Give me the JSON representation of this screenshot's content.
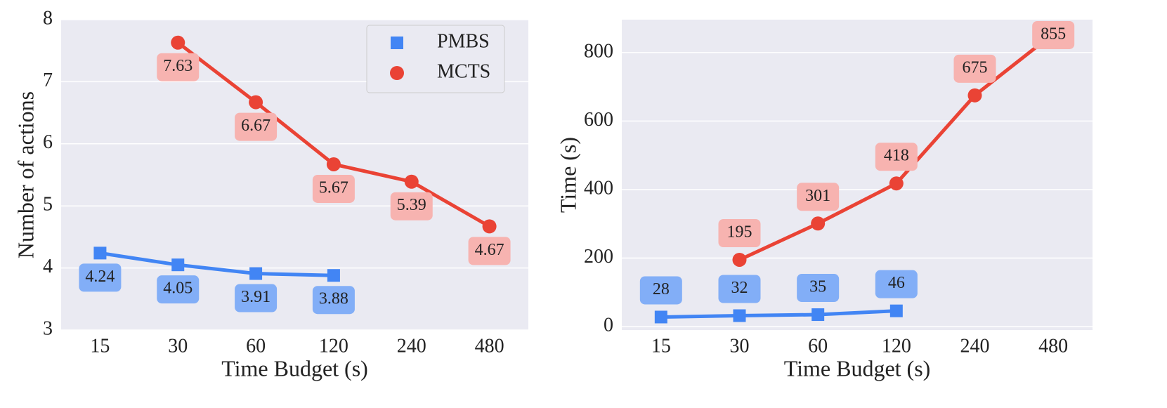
{
  "chart_data": [
    {
      "type": "line",
      "xlabel": "Time Budget (s)",
      "ylabel": "Number of actions",
      "categories": [
        "15",
        "30",
        "60",
        "120",
        "240",
        "480"
      ],
      "series": [
        {
          "name": "PMBS",
          "color": "#4285f4",
          "label_color": "#82aef7",
          "marker": "square",
          "label_position": "below",
          "values": [
            4.24,
            4.05,
            3.91,
            3.88,
            null,
            null
          ]
        },
        {
          "name": "MCTS",
          "color": "#ea4335",
          "label_color": "#f7b3b0",
          "marker": "circle",
          "label_position": "below",
          "values": [
            null,
            7.63,
            6.67,
            5.67,
            5.39,
            4.67
          ]
        }
      ],
      "ylim": [
        3,
        8
      ],
      "yticks": [
        3,
        4,
        5,
        6,
        7,
        8
      ],
      "grid": true,
      "legend": "upper right"
    },
    {
      "type": "line",
      "xlabel": "Time Budget (s)",
      "ylabel": "Time (s)",
      "categories": [
        "15",
        "30",
        "60",
        "120",
        "240",
        "480"
      ],
      "series": [
        {
          "name": "PMBS",
          "color": "#4285f4",
          "label_color": "#82aef7",
          "marker": "square",
          "label_position": "above",
          "values": [
            28,
            32,
            35,
            46,
            null,
            null
          ]
        },
        {
          "name": "MCTS",
          "color": "#ea4335",
          "label_color": "#f7b3b0",
          "marker": "circle",
          "label_position": "above",
          "values": [
            null,
            195,
            301,
            418,
            675,
            855
          ]
        }
      ],
      "ylim": [
        -10,
        896
      ],
      "yticks": [
        0,
        200,
        400,
        600,
        800
      ],
      "grid": true
    }
  ]
}
